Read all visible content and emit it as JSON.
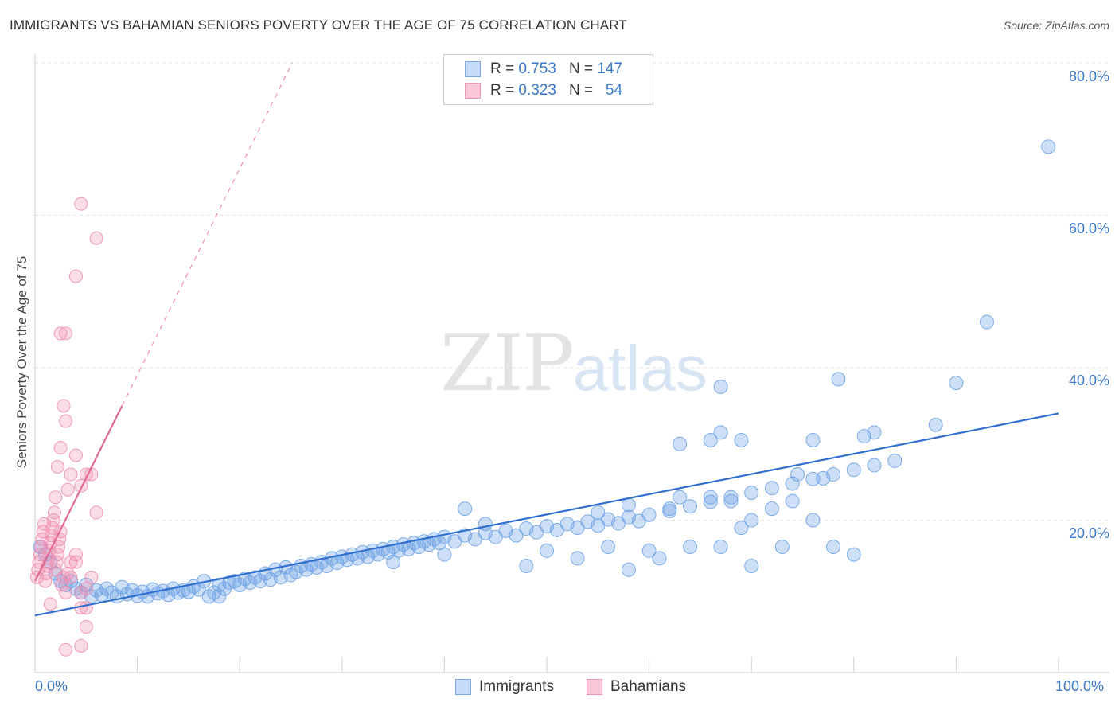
{
  "header": {
    "title": "IMMIGRANTS VS BAHAMIAN SENIORS POVERTY OVER THE AGE OF 75 CORRELATION CHART",
    "source": "Source: ZipAtlas.com"
  },
  "watermark": {
    "zip": "ZIP",
    "atlas": "atlas"
  },
  "legend": {
    "rows": [
      {
        "r_label": "R =",
        "r_value": "0.753",
        "n_label": "N =",
        "n_value": "147"
      },
      {
        "r_label": "R =",
        "r_value": "0.323",
        "n_label": "N =",
        "n_value": "54"
      }
    ]
  },
  "bottom_legend": {
    "immigrants": "Immigrants",
    "bahamians": "Bahamians"
  },
  "axes": {
    "ylabel": "Seniors Poverty Over the Age of 75",
    "x_min_label": "0.0%",
    "x_max_label": "100.0%",
    "y_ticks": [
      "80.0%",
      "60.0%",
      "40.0%",
      "20.0%"
    ]
  },
  "chart_data": {
    "type": "scatter",
    "title": "IMMIGRANTS VS BAHAMIAN SENIORS POVERTY OVER THE AGE OF 75 CORRELATION CHART",
    "xlabel": "",
    "ylabel": "Seniors Poverty Over the Age of 75",
    "xlim": [
      0,
      100
    ],
    "ylim": [
      0,
      80
    ],
    "grid": true,
    "legend": "bottom-center",
    "colors": {
      "immigrants": "#6fa3e6",
      "bahamians": "#f08eb0",
      "imm_line": "#2f6fcf",
      "bah_line": "#e06a94"
    },
    "series": [
      {
        "name": "Immigrants",
        "trend": {
          "x": [
            0,
            100
          ],
          "y": [
            7.5,
            34.0
          ],
          "r": 0.753,
          "n": 147
        },
        "points": [
          [
            0.5,
            16.5
          ],
          [
            1.0,
            15.5
          ],
          [
            1.5,
            14.5
          ],
          [
            2.0,
            13.0
          ],
          [
            2.5,
            12.0
          ],
          [
            3.0,
            11.5
          ],
          [
            3.5,
            12.0
          ],
          [
            4.0,
            11.0
          ],
          [
            4.5,
            10.5
          ],
          [
            5.0,
            11.5
          ],
          [
            5.5,
            10.0
          ],
          [
            6.0,
            10.8
          ],
          [
            6.5,
            10.2
          ],
          [
            7.0,
            11.0
          ],
          [
            7.5,
            10.5
          ],
          [
            8.0,
            10.0
          ],
          [
            8.5,
            11.2
          ],
          [
            9.0,
            10.3
          ],
          [
            9.5,
            10.8
          ],
          [
            10.0,
            10.1
          ],
          [
            10.5,
            10.6
          ],
          [
            11.0,
            10.0
          ],
          [
            11.5,
            10.9
          ],
          [
            12.0,
            10.4
          ],
          [
            12.5,
            10.7
          ],
          [
            13.0,
            10.2
          ],
          [
            13.5,
            11.0
          ],
          [
            14.0,
            10.5
          ],
          [
            14.5,
            10.8
          ],
          [
            15.0,
            10.6
          ],
          [
            15.5,
            11.3
          ],
          [
            16.0,
            10.9
          ],
          [
            16.5,
            12.0
          ],
          [
            17.0,
            10.0
          ],
          [
            17.5,
            10.5
          ],
          [
            18.0,
            11.5
          ],
          [
            18.5,
            11.0
          ],
          [
            19.0,
            11.8
          ],
          [
            19.5,
            12.0
          ],
          [
            20.0,
            11.5
          ],
          [
            20.5,
            12.3
          ],
          [
            21.0,
            11.8
          ],
          [
            21.5,
            12.5
          ],
          [
            22.0,
            12.0
          ],
          [
            22.5,
            13.0
          ],
          [
            23.0,
            12.2
          ],
          [
            23.5,
            13.5
          ],
          [
            24.0,
            12.5
          ],
          [
            24.5,
            13.8
          ],
          [
            25.0,
            12.8
          ],
          [
            25.5,
            13.2
          ],
          [
            26.0,
            14.0
          ],
          [
            26.5,
            13.5
          ],
          [
            27.0,
            14.2
          ],
          [
            27.5,
            13.8
          ],
          [
            28.0,
            14.5
          ],
          [
            28.5,
            14.0
          ],
          [
            29.0,
            15.0
          ],
          [
            29.5,
            14.4
          ],
          [
            30.0,
            15.2
          ],
          [
            30.5,
            14.8
          ],
          [
            31.0,
            15.5
          ],
          [
            31.5,
            15.0
          ],
          [
            32.0,
            15.8
          ],
          [
            32.5,
            15.2
          ],
          [
            33.0,
            16.0
          ],
          [
            33.5,
            15.5
          ],
          [
            34.0,
            16.2
          ],
          [
            34.5,
            15.8
          ],
          [
            35.0,
            16.5
          ],
          [
            35.5,
            16.0
          ],
          [
            36.0,
            16.8
          ],
          [
            36.5,
            16.2
          ],
          [
            37.0,
            17.0
          ],
          [
            37.5,
            16.5
          ],
          [
            38.0,
            17.2
          ],
          [
            38.5,
            16.8
          ],
          [
            39.0,
            17.5
          ],
          [
            39.5,
            17.0
          ],
          [
            40.0,
            17.8
          ],
          [
            41.0,
            17.2
          ],
          [
            42.0,
            18.0
          ],
          [
            43.0,
            17.5
          ],
          [
            44.0,
            18.3
          ],
          [
            45.0,
            17.8
          ],
          [
            46.0,
            18.6
          ],
          [
            47.0,
            18.0
          ],
          [
            48.0,
            18.9
          ],
          [
            49.0,
            18.4
          ],
          [
            50.0,
            19.2
          ],
          [
            51.0,
            18.7
          ],
          [
            52.0,
            19.5
          ],
          [
            53.0,
            19.0
          ],
          [
            54.0,
            19.8
          ],
          [
            55.0,
            19.3
          ],
          [
            56.0,
            20.1
          ],
          [
            57.0,
            19.6
          ],
          [
            58.0,
            20.4
          ],
          [
            59.0,
            19.9
          ],
          [
            60.0,
            20.7
          ],
          [
            62.0,
            21.2
          ],
          [
            64.0,
            21.8
          ],
          [
            66.0,
            22.4
          ],
          [
            68.0,
            23.0
          ],
          [
            70.0,
            23.6
          ],
          [
            72.0,
            24.2
          ],
          [
            74.0,
            24.8
          ],
          [
            76.0,
            25.4
          ],
          [
            78.0,
            26.0
          ],
          [
            80.0,
            26.6
          ],
          [
            82.0,
            27.2
          ],
          [
            84.0,
            27.8
          ],
          [
            18.0,
            10.0
          ],
          [
            35.0,
            14.5
          ],
          [
            40.0,
            15.5
          ],
          [
            42.0,
            21.5
          ],
          [
            44.0,
            19.5
          ],
          [
            48.0,
            14.0
          ],
          [
            50.0,
            16.0
          ],
          [
            53.0,
            15.0
          ],
          [
            56.0,
            16.5
          ],
          [
            58.0,
            13.5
          ],
          [
            60.0,
            16.0
          ],
          [
            61.0,
            15.0
          ],
          [
            64.0,
            16.5
          ],
          [
            67.0,
            16.5
          ],
          [
            69.0,
            19.0
          ],
          [
            70.0,
            14.0
          ],
          [
            73.0,
            16.5
          ],
          [
            78.0,
            16.5
          ],
          [
            80.0,
            15.5
          ],
          [
            55.0,
            21.0
          ],
          [
            58.0,
            22.0
          ],
          [
            62.0,
            21.5
          ],
          [
            63.0,
            23.0
          ],
          [
            66.0,
            23.0
          ],
          [
            68.0,
            22.5
          ],
          [
            70.0,
            20.0
          ],
          [
            72.0,
            21.5
          ],
          [
            74.0,
            22.5
          ],
          [
            76.0,
            20.0
          ],
          [
            66.0,
            30.5
          ],
          [
            67.0,
            31.5
          ],
          [
            69.0,
            30.5
          ],
          [
            63.0,
            30.0
          ],
          [
            76.0,
            30.5
          ],
          [
            74.5,
            26.0
          ],
          [
            77.0,
            25.5
          ],
          [
            81.0,
            31.0
          ],
          [
            82.0,
            31.5
          ],
          [
            93.0,
            46.0
          ],
          [
            99.0,
            69.0
          ],
          [
            67.0,
            37.5
          ],
          [
            78.5,
            38.5
          ],
          [
            90.0,
            38.0
          ],
          [
            88.0,
            32.5
          ]
        ]
      },
      {
        "name": "Bahamians",
        "trend": {
          "x": [
            0,
            8.5
          ],
          "y": [
            12.0,
            35.0
          ],
          "r": 0.323,
          "n": 54
        },
        "points": [
          [
            0.2,
            12.5
          ],
          [
            0.3,
            13.5
          ],
          [
            0.4,
            14.5
          ],
          [
            0.5,
            15.5
          ],
          [
            0.6,
            16.5
          ],
          [
            0.7,
            17.5
          ],
          [
            0.8,
            18.5
          ],
          [
            0.9,
            19.5
          ],
          [
            1.0,
            12.0
          ],
          [
            1.1,
            13.0
          ],
          [
            1.2,
            14.0
          ],
          [
            1.3,
            15.0
          ],
          [
            1.4,
            16.0
          ],
          [
            1.5,
            17.0
          ],
          [
            1.6,
            18.0
          ],
          [
            1.7,
            19.0
          ],
          [
            1.8,
            20.0
          ],
          [
            1.9,
            21.0
          ],
          [
            2.0,
            13.5
          ],
          [
            2.1,
            14.5
          ],
          [
            2.2,
            15.5
          ],
          [
            2.3,
            16.5
          ],
          [
            2.4,
            17.5
          ],
          [
            2.5,
            18.5
          ],
          [
            2.6,
            11.5
          ],
          [
            2.8,
            12.5
          ],
          [
            3.0,
            10.5
          ],
          [
            3.2,
            13.0
          ],
          [
            3.5,
            14.5
          ],
          [
            4.0,
            15.5
          ],
          [
            4.5,
            10.5
          ],
          [
            5.0,
            11.0
          ],
          [
            5.5,
            12.5
          ],
          [
            2.0,
            23.0
          ],
          [
            2.2,
            27.0
          ],
          [
            2.5,
            29.5
          ],
          [
            2.8,
            35.0
          ],
          [
            3.0,
            33.0
          ],
          [
            3.2,
            24.0
          ],
          [
            3.5,
            26.0
          ],
          [
            4.0,
            28.5
          ],
          [
            4.5,
            24.5
          ],
          [
            5.0,
            26.0
          ],
          [
            5.5,
            26.0
          ],
          [
            6.0,
            21.0
          ],
          [
            2.5,
            44.5
          ],
          [
            3.0,
            44.5
          ],
          [
            4.0,
            52.0
          ],
          [
            4.5,
            61.5
          ],
          [
            6.0,
            57.0
          ],
          [
            4.5,
            8.5
          ],
          [
            5.0,
            8.5
          ],
          [
            3.0,
            3.0
          ],
          [
            4.5,
            3.5
          ],
          [
            5.0,
            6.0
          ],
          [
            1.5,
            9.0
          ],
          [
            3.5,
            12.5
          ],
          [
            4.0,
            14.5
          ]
        ]
      }
    ]
  }
}
